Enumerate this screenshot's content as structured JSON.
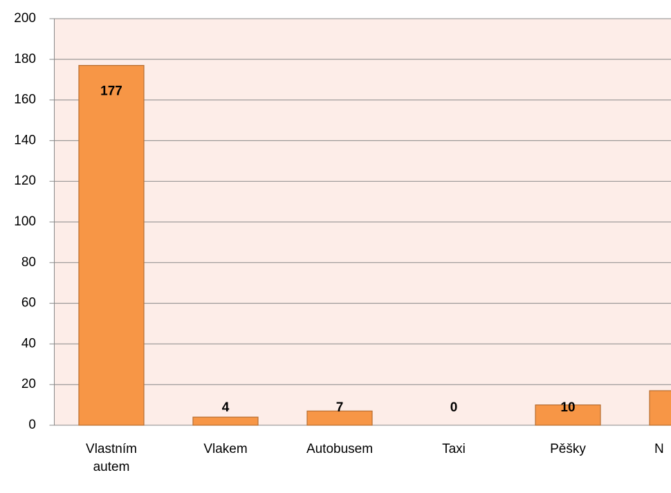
{
  "chart_data": {
    "type": "bar",
    "categories": [
      "Vlastním autem",
      "Vlakem",
      "Autobusem",
      "Taxi",
      "Pěšky",
      "N"
    ],
    "values": [
      177,
      4,
      7,
      0,
      10,
      17
    ],
    "color": "#f79646",
    "ylim": [
      0,
      200
    ],
    "yticks": [
      0,
      20,
      40,
      60,
      80,
      100,
      120,
      140,
      160,
      180,
      200
    ],
    "grid": true
  }
}
